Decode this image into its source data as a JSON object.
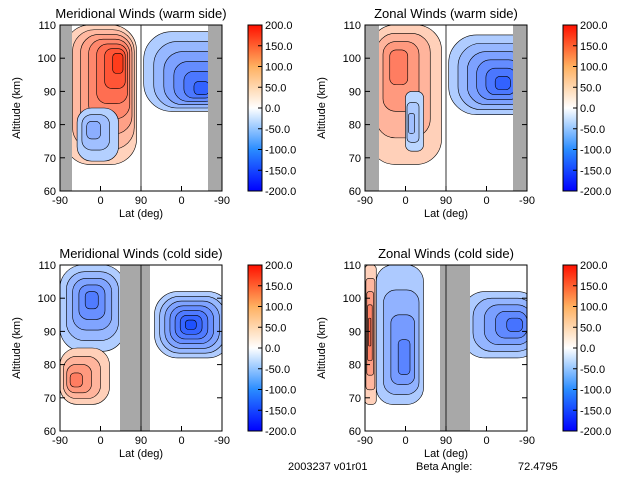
{
  "chart_data": [
    {
      "type": "heatmap",
      "title": "Meridional Winds (warm side)",
      "xlabel": "Lat (deg)",
      "ylabel": "Altitude (km)",
      "x_ticks": [
        "-90",
        "0",
        "90",
        "0",
        "-90"
      ],
      "y_ticks": [
        "60",
        "70",
        "80",
        "90",
        "100",
        "110"
      ],
      "ylim": [
        60,
        110
      ],
      "colorbar": {
        "min": -200,
        "max": 200,
        "ticks": [
          "200.0",
          "150.0",
          "100.0",
          "50.0",
          "0.0",
          "-50.0",
          "-100.0",
          "-150.0",
          "-200.0"
        ]
      },
      "colors": {
        "positive": "#ff3b00",
        "negative": "#0028ff",
        "nodata": "#a8a8a8"
      },
      "regions": [
        {
          "x": [
            -80,
            80
          ],
          "alt": [
            68,
            110
          ],
          "sign": 1,
          "peak": 175,
          "center": [
            45,
            100
          ]
        },
        {
          "x": [
            -52,
            40
          ],
          "alt": [
            69,
            85
          ],
          "sign": -1,
          "peak": 60,
          "center": [
            -20,
            79
          ]
        },
        {
          "x": [
            96,
            300
          ],
          "alt": [
            84,
            108
          ],
          "sign": -1,
          "peak": 150,
          "center": [
            230,
            90
          ]
        }
      ]
    },
    {
      "type": "heatmap",
      "title": "Zonal Winds (warm side)",
      "xlabel": "Lat (deg)",
      "ylabel": "Altitude (km)",
      "x_ticks": [
        "-90",
        "0",
        "90",
        "0",
        "-90"
      ],
      "y_ticks": [
        "60",
        "70",
        "80",
        "90",
        "100",
        "110"
      ],
      "ylim": [
        60,
        110
      ],
      "colorbar": {
        "min": -200,
        "max": 200,
        "ticks": [
          "200.0",
          "150.0",
          "100.0",
          "50.0",
          "0.0",
          "-50.0",
          "-100.0",
          "-150.0",
          "-200.0"
        ]
      },
      "colors": {
        "positive": "#ff3b00",
        "negative": "#0028ff",
        "nodata": "#a8a8a8"
      },
      "regions": [
        {
          "x": [
            -80,
            80
          ],
          "alt": [
            68,
            110
          ],
          "sign": 1,
          "peak": 110,
          "center": [
            -20,
            100
          ]
        },
        {
          "x": [
            0,
            40
          ],
          "alt": [
            72,
            90
          ],
          "sign": -1,
          "peak": 40,
          "center": [
            10,
            80
          ]
        },
        {
          "x": [
            96,
            300
          ],
          "alt": [
            83,
            107
          ],
          "sign": -1,
          "peak": 150,
          "center": [
            220,
            92
          ]
        }
      ]
    },
    {
      "type": "heatmap",
      "title": "Meridional Winds (cold side)",
      "xlabel": "Lat (deg)",
      "ylabel": "Altitude (km)",
      "x_ticks": [
        "-90",
        "0",
        "90",
        "0",
        "-90"
      ],
      "y_ticks": [
        "60",
        "70",
        "80",
        "90",
        "100",
        "110"
      ],
      "ylim": [
        60,
        110
      ],
      "colorbar": {
        "min": -200,
        "max": 200,
        "ticks": [
          "200.0",
          "150.0",
          "100.0",
          "50.0",
          "0.0",
          "-50.0",
          "-100.0",
          "-150.0",
          "-200.0"
        ]
      },
      "colors": {
        "positive": "#ff3b00",
        "negative": "#0028ff",
        "nodata": "#a8a8a8"
      },
      "regions": [
        {
          "x": [
            -90,
            55
          ],
          "alt": [
            84,
            110
          ],
          "sign": -1,
          "peak": 120,
          "center": [
            -20,
            100
          ]
        },
        {
          "x": [
            -90,
            20
          ],
          "alt": [
            68,
            85
          ],
          "sign": 1,
          "peak": 110,
          "center": [
            -60,
            75
          ]
        },
        {
          "x": [
            120,
            290
          ],
          "alt": [
            82,
            102
          ],
          "sign": -1,
          "peak": 170,
          "center": [
            200,
            92
          ]
        }
      ]
    },
    {
      "type": "heatmap",
      "title": "Zonal Winds (cold side)",
      "xlabel": "Lat (deg)",
      "ylabel": "Altitude (km)",
      "x_ticks": [
        "-90",
        "0",
        "90",
        "0",
        "-90"
      ],
      "y_ticks": [
        "60",
        "70",
        "80",
        "90",
        "100",
        "110"
      ],
      "ylim": [
        60,
        110
      ],
      "colorbar": {
        "min": -200,
        "max": 200,
        "ticks": [
          "200.0",
          "150.0",
          "100.0",
          "50.0",
          "0.0",
          "-50.0",
          "-100.0",
          "-150.0",
          "-200.0"
        ]
      },
      "colors": {
        "positive": "#ff3b00",
        "negative": "#0028ff",
        "nodata": "#a8a8a8"
      },
      "regions": [
        {
          "x": [
            -90,
            -65
          ],
          "alt": [
            68,
            110
          ],
          "sign": 1,
          "peak": 130,
          "center": [
            -80,
            90
          ]
        },
        {
          "x": [
            -65,
            40
          ],
          "alt": [
            68,
            110
          ],
          "sign": -1,
          "peak": 110,
          "center": [
            0,
            80
          ]
        },
        {
          "x": [
            125,
            300
          ],
          "alt": [
            82,
            102
          ],
          "sign": -1,
          "peak": 130,
          "center": [
            250,
            92
          ]
        }
      ]
    }
  ],
  "footer": {
    "date_version": "2003237 v01r01",
    "beta_label": "Beta Angle:",
    "beta_value": "72.4795"
  }
}
